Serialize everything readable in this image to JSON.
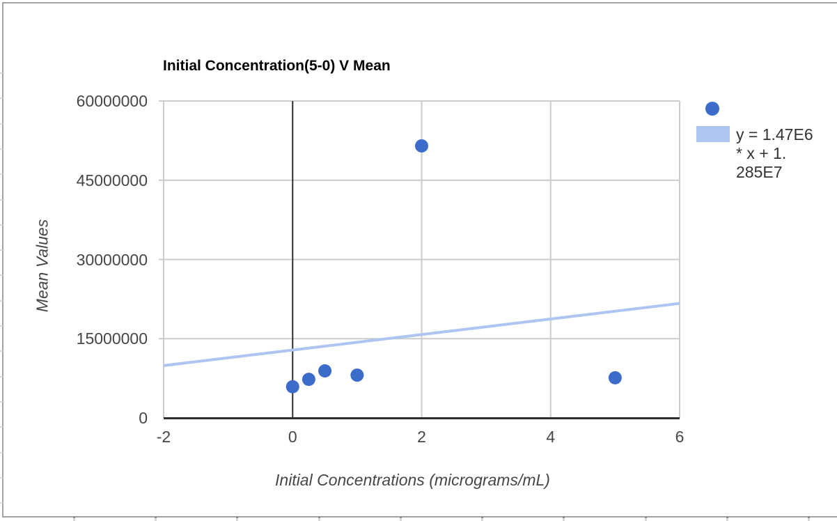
{
  "window": {
    "background": "#ffffff",
    "frame_border_color": "#a2a2a2"
  },
  "chart_data": {
    "type": "scatter",
    "title": "Initial Concentration(5-0) V Mean",
    "xlabel": "Initial Concentrations (micrograms/mL)",
    "ylabel": "Mean Values",
    "xlim": [
      -2,
      6
    ],
    "ylim": [
      0,
      60000000
    ],
    "grid": true,
    "legend_position": "right",
    "x_ticks": [
      {
        "v": -2,
        "label": "-2"
      },
      {
        "v": 0,
        "label": "0"
      },
      {
        "v": 2,
        "label": "2"
      },
      {
        "v": 4,
        "label": "4"
      },
      {
        "v": 6,
        "label": "6"
      }
    ],
    "y_ticks": [
      {
        "v": 0,
        "label": "0"
      },
      {
        "v": 15000000,
        "label": "15000000"
      },
      {
        "v": 30000000,
        "label": "30000000"
      },
      {
        "v": 45000000,
        "label": "45000000"
      },
      {
        "v": 60000000,
        "label": "60000000"
      }
    ],
    "series": [
      {
        "name": "Mean Values",
        "type": "scatter",
        "color": "#3b6cc9",
        "points": [
          {
            "x": 0,
            "y": 5900000
          },
          {
            "x": 0.25,
            "y": 7300000
          },
          {
            "x": 0.5,
            "y": 8900000
          },
          {
            "x": 1,
            "y": 8100000
          },
          {
            "x": 2,
            "y": 51500000
          },
          {
            "x": 5,
            "y": 7600000
          }
        ]
      }
    ],
    "trendline": {
      "slope": 1470000,
      "intercept": 12850000,
      "color": "#adc5f0",
      "label": "y = 1.47E6\n* x + 1.\n285E7"
    },
    "colors": {
      "grid": "#cccccc",
      "axis": "#2e2e2e",
      "zero_axis": "#2e2e2e",
      "tick_label": "#464646",
      "title": "#000000",
      "axis_title": "#464646",
      "legend_text": "#333333"
    }
  }
}
